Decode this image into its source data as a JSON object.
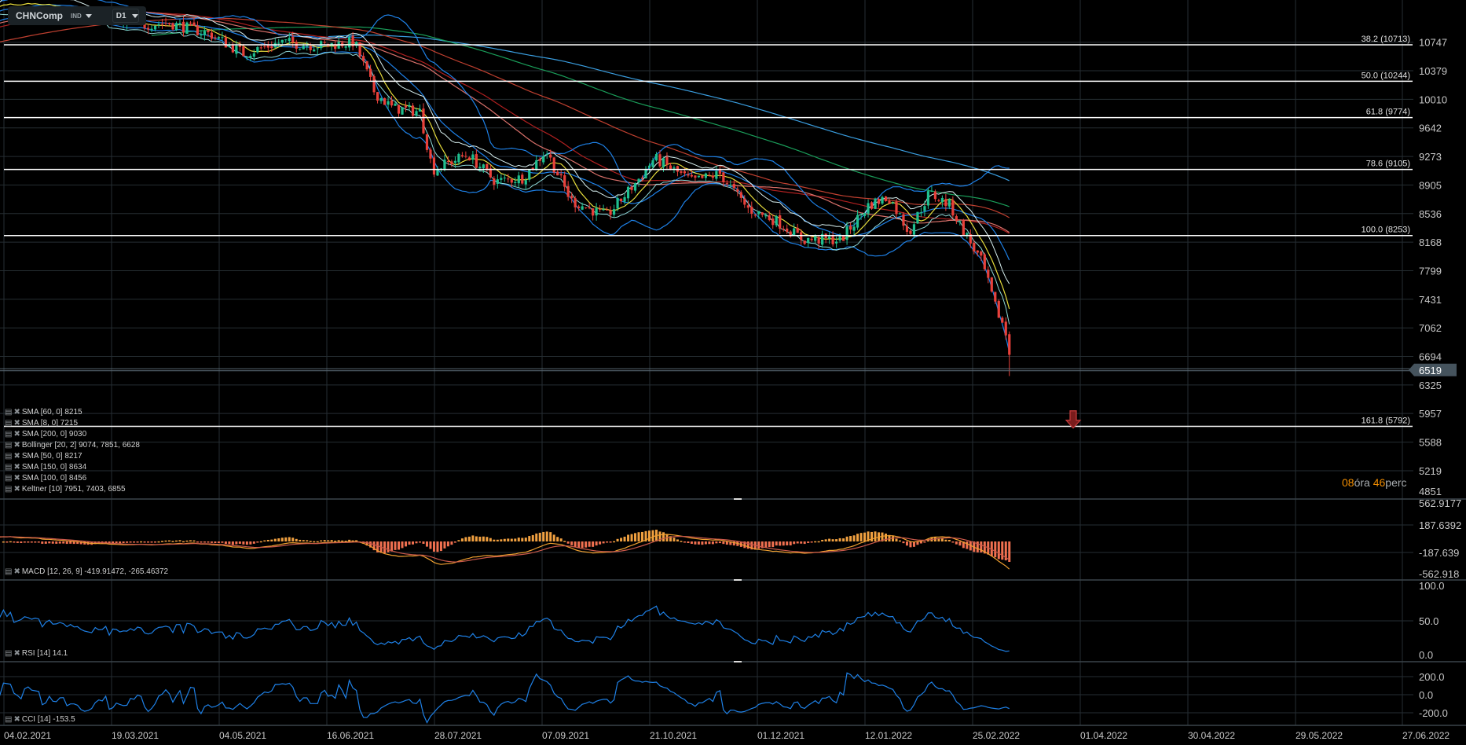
{
  "toolbar": {
    "symbol": "CHNComp",
    "exchange": "IND",
    "timeframe": "D1"
  },
  "legends": {
    "main": [
      "SMA [60, 0] 8215",
      "SMA [8, 0] 7215",
      "SMA [200, 0] 9030",
      "Bollinger  [20, 2] 9074,  7851,  6628",
      "SMA [50, 0] 8217",
      "SMA [150, 0] 8634",
      "SMA [100, 0] 8456",
      "Keltner  [10] 7951,  7403,  6855"
    ],
    "macd": "MACD [12,  26,  9] -419.91472,  -265.46372",
    "rsi": "RSI [14]  14.1",
    "cci": "CCI [14]  -153.5"
  },
  "countdown": {
    "hours": "08",
    "hours_unit": "óra",
    "minutes": "46",
    "minutes_unit": "perc"
  },
  "colors": {
    "up": "#1fbf8f",
    "down": "#e8403a",
    "bollinger": "#1e80e6",
    "sma8": "#e6dc3c",
    "sma50": "#d9706a",
    "sma60": "#b02020",
    "sma100": "#c04030",
    "sma150": "#1a9e5a",
    "sma200": "#3a9ee0",
    "keltner": "#d8f0f0",
    "macd": "#f0a030",
    "signal": "#c8584a",
    "rsi": "#1e80e6",
    "cci": "#1e80e6",
    "accent": "#f08c00"
  },
  "chart_data": {
    "type": "candlestick",
    "symbol": "CHNComp",
    "timeframe": "D1",
    "current_price": "6519",
    "price_axis": [
      "10747",
      "10379",
      "10010",
      "9642",
      "9273",
      "8905",
      "8536",
      "8168",
      "7799",
      "7431",
      "7062",
      "6694",
      "6325",
      "5957",
      "5588",
      "5219",
      "4851"
    ],
    "ylim": [
      4851,
      11100
    ],
    "date_axis": [
      "04.02.2021",
      "19.03.2021",
      "04.05.2021",
      "16.06.2021",
      "28.07.2021",
      "07.09.2021",
      "21.10.2021",
      "01.12.2021",
      "12.01.2022",
      "25.02.2022",
      "01.04.2022",
      "30.04.2022",
      "29.05.2022",
      "27.06.2022"
    ],
    "close_keypoints": [
      {
        "day": -150,
        "close": 10200
      },
      {
        "day": -60,
        "close": 10800
      },
      {
        "day": 0,
        "close": 11250
      },
      {
        "day": 30,
        "close": 11150
      },
      {
        "day": 47,
        "close": 10950
      },
      {
        "day": 65,
        "close": 11000
      },
      {
        "day": 82,
        "close": 10850
      },
      {
        "day": 95,
        "close": 10600
      },
      {
        "day": 110,
        "close": 10750
      },
      {
        "day": 125,
        "close": 10700
      },
      {
        "day": 139,
        "close": 10750
      },
      {
        "day": 147,
        "close": 10100
      },
      {
        "day": 154,
        "close": 9900
      },
      {
        "day": 165,
        "close": 9850
      },
      {
        "day": 170,
        "close": 9100
      },
      {
        "day": 184,
        "close": 9300
      },
      {
        "day": 195,
        "close": 8950
      },
      {
        "day": 206,
        "close": 9000
      },
      {
        "day": 215,
        "close": 9350
      },
      {
        "day": 225,
        "close": 8700
      },
      {
        "day": 239,
        "close": 8500
      },
      {
        "day": 251,
        "close": 8950
      },
      {
        "day": 258,
        "close": 9250
      },
      {
        "day": 273,
        "close": 8950
      },
      {
        "day": 284,
        "close": 9050
      },
      {
        "day": 295,
        "close": 8600
      },
      {
        "day": 306,
        "close": 8450
      },
      {
        "day": 317,
        "close": 8200
      },
      {
        "day": 332,
        "close": 8200
      },
      {
        "day": 343,
        "close": 8650
      },
      {
        "day": 351,
        "close": 8750
      },
      {
        "day": 359,
        "close": 8300
      },
      {
        "day": 367,
        "close": 8800
      },
      {
        "day": 375,
        "close": 8650
      },
      {
        "day": 380,
        "close": 8350
      },
      {
        "day": 388,
        "close": 7900
      },
      {
        "day": 393,
        "close": 7350
      },
      {
        "day": 397,
        "close": 7050
      },
      {
        "day": 400,
        "close": 6519
      }
    ],
    "fibonacci": [
      {
        "label": "38.2 (10713)",
        "value": 10713
      },
      {
        "label": "50.0 (10244)",
        "value": 10244
      },
      {
        "label": "61.8 (9774)",
        "value": 9774
      },
      {
        "label": "78.6 (9105)",
        "value": 9105
      },
      {
        "label": "100.0 (8253)",
        "value": 8253
      },
      {
        "label": "161.8 (5792)",
        "value": 5792
      }
    ],
    "signal_arrow": {
      "type": "sell",
      "price": 5850,
      "date": "approx 30.03.2022"
    },
    "macd_axis": [
      "562.9177",
      "187.6392",
      "-187.639",
      "-562.918"
    ],
    "macd_range": [
      -562.918,
      562.9177
    ],
    "rsi_axis": [
      "100.0",
      "50.0",
      "0.0"
    ],
    "cci_axis": [
      "200.0",
      "0.0",
      "-200.0"
    ],
    "cci_range": [
      -200,
      200
    ]
  }
}
